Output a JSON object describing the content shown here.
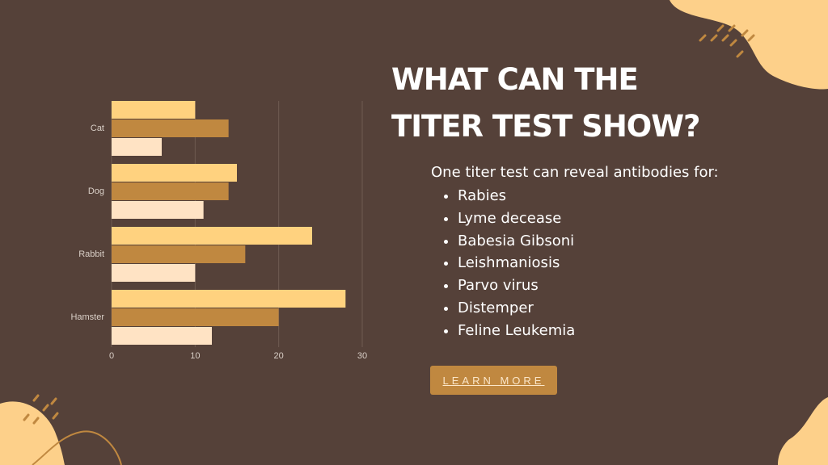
{
  "chart_data": {
    "type": "hbar-grouped",
    "categories": [
      "Cat",
      "Dog",
      "Rabbit",
      "Hamster"
    ],
    "series": [
      {
        "color": "#ffd27f",
        "values": [
          10,
          15,
          24,
          28
        ]
      },
      {
        "color": "#c08840",
        "values": [
          14,
          14,
          16,
          20
        ]
      },
      {
        "color": "#ffe3c4",
        "values": [
          6,
          11,
          10,
          12
        ]
      }
    ],
    "xlim": [
      0,
      30
    ],
    "xticks": [
      0,
      10,
      20,
      30
    ],
    "grid": true
  },
  "title": "What can the titer test show?",
  "intro": "One titer test can reveal antibodies for:",
  "list": [
    "Rabies",
    "Lyme decease",
    "Babesia Gibsoni",
    "Leishmaniosis",
    "Parvo virus",
    "Distemper",
    "Feline Leukemia"
  ],
  "button": "LEARN MORE"
}
